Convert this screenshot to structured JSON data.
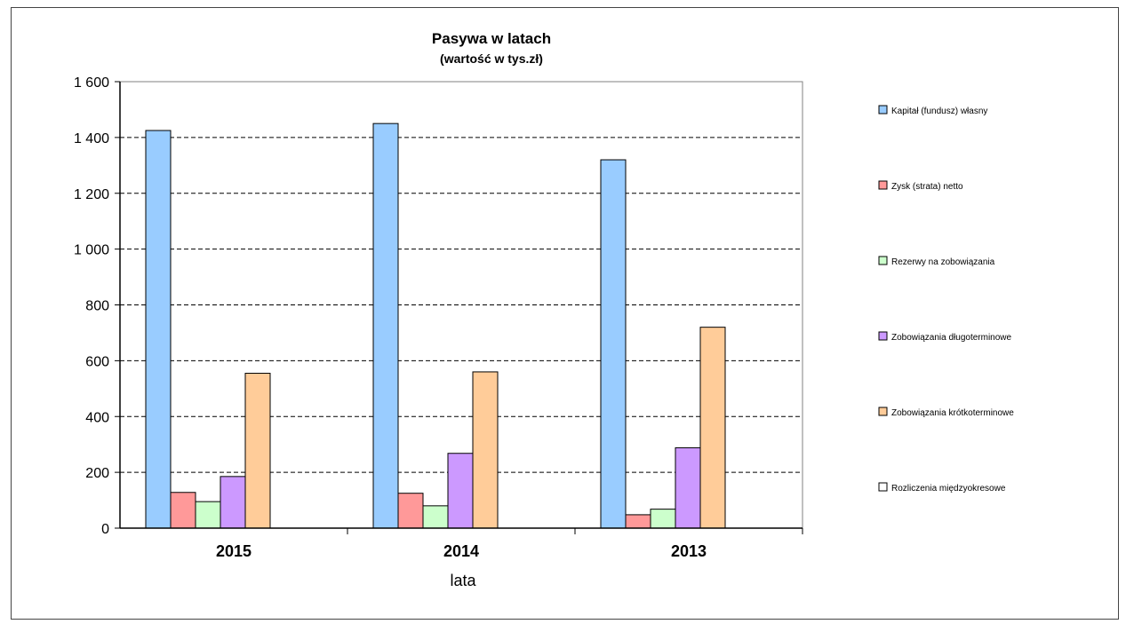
{
  "chart_data": {
    "type": "bar",
    "title": "Pasywa w latach",
    "subtitle": "(wartość w tys.zł)",
    "xlabel": "lata",
    "ylabel": "",
    "categories": [
      "2015",
      "2014",
      "2013"
    ],
    "ylim": [
      0,
      1600
    ],
    "yticks": [
      0,
      200,
      400,
      600,
      800,
      1000,
      1200,
      1400,
      1600
    ],
    "ytick_labels": [
      "0",
      "200",
      "400",
      "600",
      "800",
      "1 000",
      "1 200",
      "1 400",
      "1 600"
    ],
    "grid": true,
    "legend_position": "right",
    "series": [
      {
        "name": "Kapitał (fundusz) własny",
        "color": "#99ccff",
        "values": [
          1425,
          1450,
          1320
        ]
      },
      {
        "name": "Zysk (strata) netto",
        "color": "#ff9999",
        "values": [
          128,
          125,
          48
        ]
      },
      {
        "name": "Rezerwy na zobowiązania",
        "color": "#ccffcc",
        "values": [
          95,
          80,
          68
        ]
      },
      {
        "name": "Zobowiązania długoterminowe",
        "color": "#cc99ff",
        "values": [
          185,
          268,
          288
        ]
      },
      {
        "name": "Zobowiązania krótkoterminowe",
        "color": "#ffcc99",
        "values": [
          555,
          560,
          720
        ]
      },
      {
        "name": "Rozliczenia międzyokresowe",
        "color": "#ffffff",
        "values": [
          0,
          0,
          0
        ]
      }
    ]
  }
}
